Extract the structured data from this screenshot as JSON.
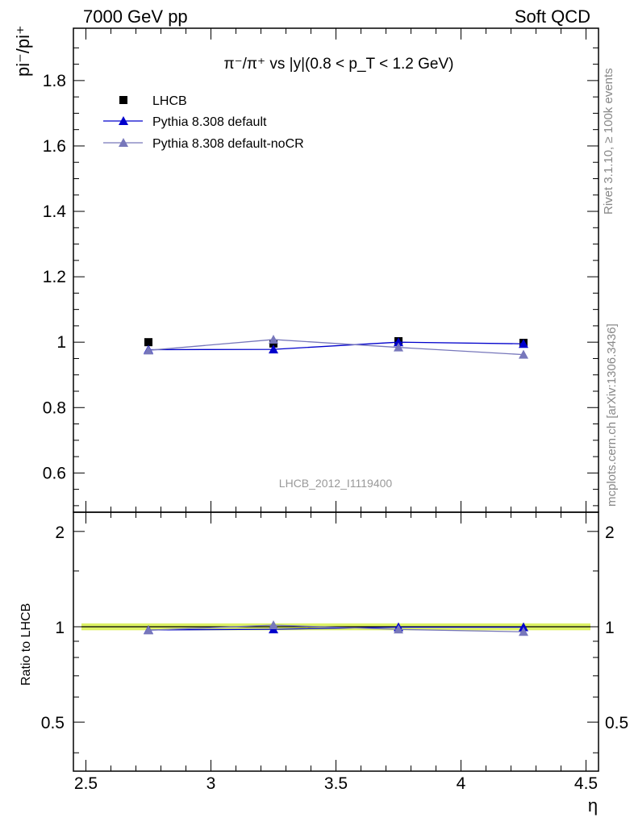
{
  "header": {
    "left": "7000 GeV pp",
    "right": "Soft QCD"
  },
  "side": {
    "rivet": "Rivet 3.1.10, ≥ 100k events",
    "mcplots": "mcplots.cern.ch [arXiv:1306.3436]"
  },
  "chart_data": {
    "type": "line",
    "title": "π⁻/π⁺ vs |y|(0.8 < p_T < 1.2 GeV)",
    "watermark": "LHCB_2012_I1119400",
    "ylabel": "pi⁻/pi⁺",
    "xlabel": "η",
    "ratio_ylabel": "Ratio to LHCB",
    "xlim": [
      2.45,
      4.55
    ],
    "ylim": [
      0.48,
      1.96
    ],
    "ratio_ylim": [
      0.35,
      2.3
    ],
    "x_ticks": [
      "2.5",
      "3",
      "3.5",
      "4",
      "4.5"
    ],
    "y_ticks": [
      "0.6",
      "0.8",
      "1",
      "1.2",
      "1.4",
      "1.6",
      "1.8"
    ],
    "ratio_ticks": [
      "0.5",
      "1",
      "2"
    ],
    "x": [
      2.75,
      3.25,
      3.75,
      4.25
    ],
    "series": [
      {
        "name": "LHCB",
        "values": [
          1.0,
          0.996,
          1.003,
          0.998
        ],
        "color": "#000000",
        "marker": "square"
      },
      {
        "name": "Pythia 8.308 default",
        "values": [
          0.977,
          0.978,
          1.0,
          0.995
        ],
        "color": "#0000cc",
        "marker": "triangle"
      },
      {
        "name": "Pythia 8.308 default-noCR",
        "values": [
          0.975,
          1.008,
          0.984,
          0.962
        ],
        "color": "#7777bb",
        "marker": "triangle"
      }
    ],
    "ratio_series": [
      {
        "name": "Pythia 8.308 default",
        "values": [
          0.977,
          0.982,
          0.997,
          0.997
        ]
      },
      {
        "name": "Pythia 8.308 default-noCR",
        "values": [
          0.975,
          1.012,
          0.981,
          0.964
        ]
      }
    ],
    "legend_position": "top-left"
  }
}
